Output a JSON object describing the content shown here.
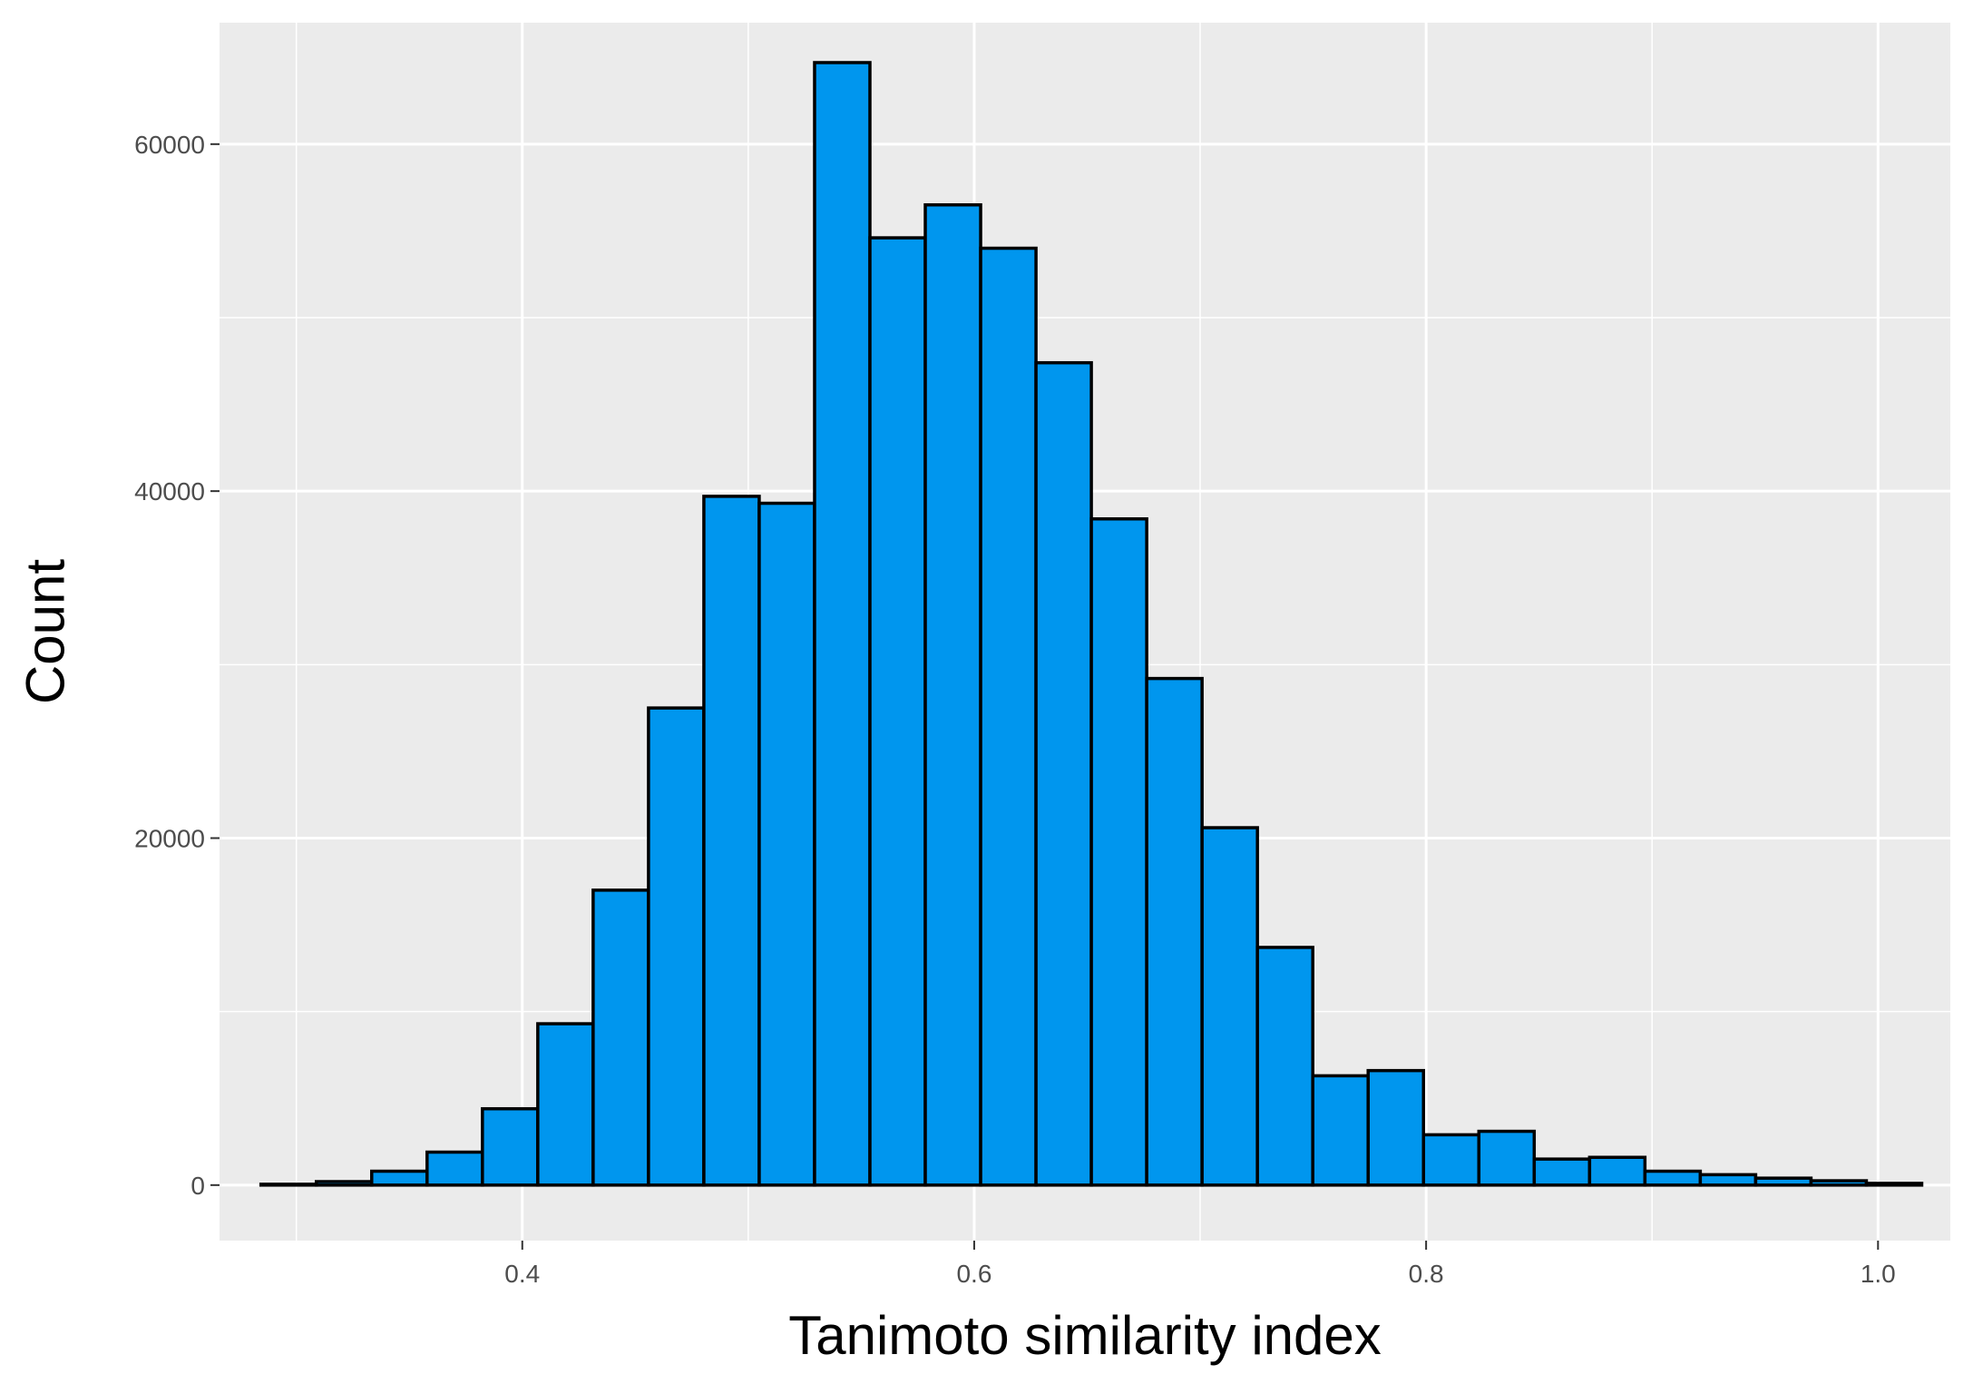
{
  "chart_data": {
    "type": "bar",
    "title": "",
    "xlabel": "Tanimoto similarity index",
    "ylabel": "Count",
    "xlim": [
      0.266,
      1.032
    ],
    "ylim": [
      -3200,
      67000
    ],
    "x_ticks": [
      0.4,
      0.6,
      0.8,
      1.0
    ],
    "x_tick_labels": [
      "0.4",
      "0.6",
      "0.8",
      "1.0"
    ],
    "y_ticks": [
      0,
      20000,
      40000,
      60000
    ],
    "y_tick_labels": [
      "0",
      "20000",
      "40000",
      "60000"
    ],
    "grid": true,
    "legend": "none",
    "bin_width": 0.0245,
    "bin_centers": [
      0.2966,
      0.3211,
      0.3456,
      0.3701,
      0.3946,
      0.4191,
      0.4436,
      0.4681,
      0.4926,
      0.5171,
      0.5416,
      0.5661,
      0.5906,
      0.6151,
      0.6396,
      0.6641,
      0.6886,
      0.7131,
      0.7376,
      0.7621,
      0.7866,
      0.8111,
      0.8356,
      0.8601,
      0.8846,
      0.9091,
      0.9336,
      0.9581,
      0.9826,
      1.0071
    ],
    "values": [
      50,
      200,
      800,
      1900,
      4400,
      9300,
      17000,
      27500,
      39700,
      39300,
      64700,
      54600,
      56500,
      54000,
      47400,
      38400,
      29200,
      20600,
      13700,
      6300,
      6600,
      2900,
      3100,
      1500,
      1600,
      800,
      600,
      400,
      250,
      100
    ],
    "colors": {
      "panel_background": "#ebebeb",
      "grid_major": "#ffffff",
      "bar_fill": "#0096ee",
      "bar_outline": "#000000",
      "tick_text": "#4d4d4d",
      "title_text": "#000000"
    }
  }
}
